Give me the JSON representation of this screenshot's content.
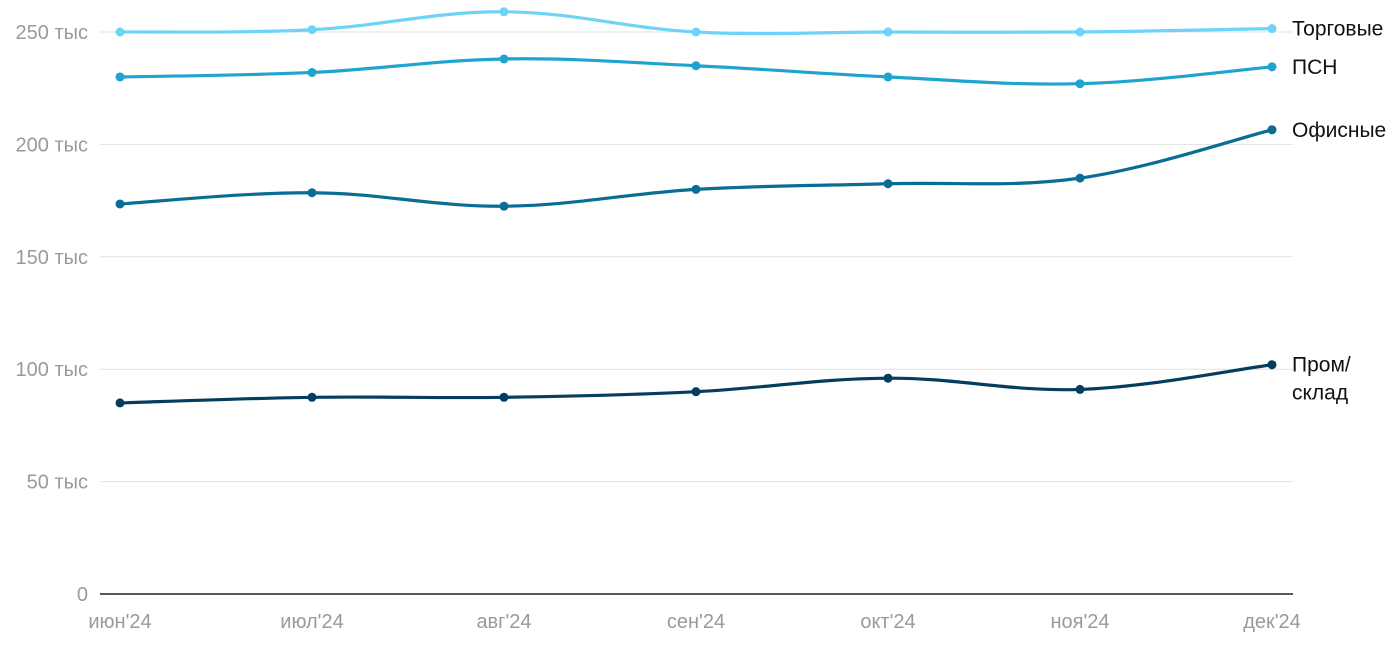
{
  "chart_data": {
    "type": "line",
    "title": "",
    "xlabel": "",
    "ylabel": "",
    "categories": [
      "июн'24",
      "июл'24",
      "авг'24",
      "сен'24",
      "окт'24",
      "ноя'24",
      "дек'24"
    ],
    "y_ticks": [
      {
        "value": 0,
        "label": "0"
      },
      {
        "value": 50000,
        "label": "50 тыс"
      },
      {
        "value": 100000,
        "label": "100 тыс"
      },
      {
        "value": 150000,
        "label": "150 тыс"
      },
      {
        "value": 200000,
        "label": "200 тыс"
      },
      {
        "value": 250000,
        "label": "250 тыс"
      }
    ],
    "ylim": [
      0,
      250000
    ],
    "grid": true,
    "legend": "direct labels at right end of lines",
    "series": [
      {
        "name": "Торговые",
        "label_lines": [
          "Торговые"
        ],
        "color": "#6dd4f7",
        "values": [
          250000,
          251000,
          259000,
          250000,
          250000,
          250000,
          251500
        ]
      },
      {
        "name": "ПСН",
        "label_lines": [
          "ПСН"
        ],
        "color": "#1fa3cf",
        "values": [
          230000,
          232000,
          238000,
          235000,
          230000,
          227000,
          234500
        ]
      },
      {
        "name": "Офисные",
        "label_lines": [
          "Офисные"
        ],
        "color": "#0a6d95",
        "values": [
          173500,
          178500,
          172500,
          180000,
          182500,
          185000,
          206500
        ]
      },
      {
        "name": "Пром/склад",
        "label_lines": [
          "Пром/",
          "склад"
        ],
        "color": "#063d5f",
        "values": [
          85000,
          87500,
          87500,
          90000,
          96000,
          91000,
          102000
        ]
      }
    ]
  }
}
